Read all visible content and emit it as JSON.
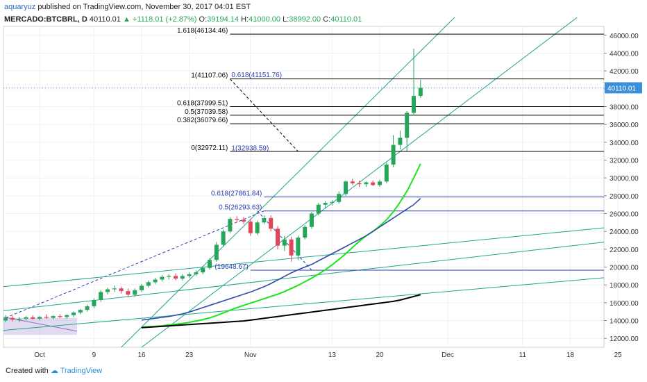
{
  "header": {
    "author": "aquaryuz",
    "published": "published on TradingView.com, November 30, 2017 04:01 EST",
    "symbol": "MERCADO:BTCBRL, D",
    "last": "40110.01",
    "arrow": "▲",
    "change": "+1118.01 (+2.87%)",
    "open_label": "O:",
    "open": "39194.14",
    "high_label": "H:",
    "high": "41000.00",
    "low_label": "L:",
    "low": "38992.00",
    "close_label": "C:",
    "close": "40110.01"
  },
  "footer": {
    "created_with": "Created with",
    "brand": "TradingView"
  },
  "price_tag": "40110.01",
  "colors": {
    "up": "#26a65b",
    "down": "#e0455a",
    "axis_text": "#333333",
    "fib_level": "#000000",
    "fib_blue": "#2a3eb1",
    "channel": "#20a58a",
    "ma_fast": "#19e619",
    "ma_mid": "#2f4aa8",
    "ma_slow": "#000000",
    "price_tag": "#3b8fd9"
  },
  "chart_data": {
    "type": "candlestick",
    "x_axis": {
      "tick_labels": [
        "Oct",
        "9",
        "16",
        "23",
        "Nov",
        "13",
        "20",
        "Dec",
        "11",
        "18",
        "25"
      ]
    },
    "y_axis": {
      "range": [
        11000,
        47000
      ],
      "tick_labels": [
        "12000.00",
        "14000.00",
        "16000.00",
        "18000.00",
        "20000.00",
        "22000.00",
        "24000.00",
        "26000.00",
        "28000.00",
        "30000.00",
        "32000.00",
        "34000.00",
        "36000.00",
        "38000.00",
        "40000.00",
        "42000.00",
        "44000.00",
        "46000.00"
      ]
    },
    "grid": true,
    "candles": [
      {
        "o": 14000,
        "h": 14600,
        "l": 13800,
        "c": 14300
      },
      {
        "o": 14300,
        "h": 14500,
        "l": 13900,
        "c": 14100
      },
      {
        "o": 14100,
        "h": 14400,
        "l": 13800,
        "c": 14200
      },
      {
        "o": 14200,
        "h": 14500,
        "l": 14000,
        "c": 14350
      },
      {
        "o": 14350,
        "h": 14600,
        "l": 14100,
        "c": 14200
      },
      {
        "o": 14200,
        "h": 14500,
        "l": 14000,
        "c": 14400
      },
      {
        "o": 14400,
        "h": 14700,
        "l": 14200,
        "c": 14300
      },
      {
        "o": 14300,
        "h": 14600,
        "l": 14100,
        "c": 14500
      },
      {
        "o": 14500,
        "h": 14700,
        "l": 14300,
        "c": 14400
      },
      {
        "o": 14400,
        "h": 14700,
        "l": 14200,
        "c": 14600
      },
      {
        "o": 14600,
        "h": 15000,
        "l": 14400,
        "c": 14900
      },
      {
        "o": 14900,
        "h": 15300,
        "l": 14700,
        "c": 15200
      },
      {
        "o": 15200,
        "h": 15800,
        "l": 15000,
        "c": 15600
      },
      {
        "o": 15600,
        "h": 16500,
        "l": 15400,
        "c": 16300
      },
      {
        "o": 16300,
        "h": 17400,
        "l": 16100,
        "c": 17200
      },
      {
        "o": 17200,
        "h": 17700,
        "l": 16900,
        "c": 17500
      },
      {
        "o": 17500,
        "h": 17900,
        "l": 17200,
        "c": 17600
      },
      {
        "o": 17600,
        "h": 17800,
        "l": 17000,
        "c": 17300
      },
      {
        "o": 17300,
        "h": 17600,
        "l": 16600,
        "c": 16900
      },
      {
        "o": 16900,
        "h": 17600,
        "l": 16700,
        "c": 17400
      },
      {
        "o": 17400,
        "h": 18100,
        "l": 17200,
        "c": 17900
      },
      {
        "o": 17900,
        "h": 18500,
        "l": 17700,
        "c": 18300
      },
      {
        "o": 18300,
        "h": 18800,
        "l": 18100,
        "c": 18600
      },
      {
        "o": 18600,
        "h": 19100,
        "l": 18400,
        "c": 18900
      },
      {
        "o": 18900,
        "h": 19200,
        "l": 18600,
        "c": 19000
      },
      {
        "o": 19000,
        "h": 19300,
        "l": 18500,
        "c": 18700
      },
      {
        "o": 18700,
        "h": 19200,
        "l": 18500,
        "c": 19000
      },
      {
        "o": 19000,
        "h": 19400,
        "l": 18800,
        "c": 19200
      },
      {
        "o": 19200,
        "h": 19600,
        "l": 19000,
        "c": 19400
      },
      {
        "o": 19400,
        "h": 20100,
        "l": 19200,
        "c": 19900
      },
      {
        "o": 19900,
        "h": 21000,
        "l": 19700,
        "c": 20800
      },
      {
        "o": 20800,
        "h": 22800,
        "l": 20600,
        "c": 22500
      },
      {
        "o": 22500,
        "h": 24200,
        "l": 22300,
        "c": 24000
      },
      {
        "o": 24000,
        "h": 25600,
        "l": 23800,
        "c": 25400
      },
      {
        "o": 25400,
        "h": 25700,
        "l": 25000,
        "c": 25300
      },
      {
        "o": 25300,
        "h": 25600,
        "l": 24800,
        "c": 25100
      },
      {
        "o": 25100,
        "h": 25400,
        "l": 23500,
        "c": 23800
      },
      {
        "o": 23800,
        "h": 25200,
        "l": 23600,
        "c": 25000
      },
      {
        "o": 25000,
        "h": 25800,
        "l": 24800,
        "c": 25500
      },
      {
        "o": 25500,
        "h": 25800,
        "l": 24000,
        "c": 24300
      },
      {
        "o": 24300,
        "h": 24600,
        "l": 22000,
        "c": 22400
      },
      {
        "o": 22400,
        "h": 23500,
        "l": 21800,
        "c": 23100
      },
      {
        "o": 23100,
        "h": 23400,
        "l": 20600,
        "c": 21300
      },
      {
        "o": 21300,
        "h": 23500,
        "l": 20800,
        "c": 23300
      },
      {
        "o": 23300,
        "h": 24700,
        "l": 23100,
        "c": 24500
      },
      {
        "o": 24500,
        "h": 26200,
        "l": 24300,
        "c": 26000
      },
      {
        "o": 26000,
        "h": 27200,
        "l": 25800,
        "c": 27000
      },
      {
        "o": 27000,
        "h": 27400,
        "l": 26600,
        "c": 27200
      },
      {
        "o": 27200,
        "h": 27500,
        "l": 26900,
        "c": 27300
      },
      {
        "o": 27300,
        "h": 28500,
        "l": 27100,
        "c": 28200
      },
      {
        "o": 28200,
        "h": 29700,
        "l": 28000,
        "c": 29600
      },
      {
        "o": 29600,
        "h": 29900,
        "l": 29200,
        "c": 29400
      },
      {
        "o": 29400,
        "h": 29700,
        "l": 29000,
        "c": 29300
      },
      {
        "o": 29300,
        "h": 29600,
        "l": 29000,
        "c": 29500
      },
      {
        "o": 29500,
        "h": 29700,
        "l": 29100,
        "c": 29200
      },
      {
        "o": 29200,
        "h": 29800,
        "l": 29000,
        "c": 29600
      },
      {
        "o": 29600,
        "h": 31700,
        "l": 29400,
        "c": 31500
      },
      {
        "o": 31500,
        "h": 34800,
        "l": 31200,
        "c": 33700
      },
      {
        "o": 33700,
        "h": 35300,
        "l": 33200,
        "c": 34500
      },
      {
        "o": 34500,
        "h": 37500,
        "l": 33000,
        "c": 37300
      },
      {
        "o": 37300,
        "h": 44500,
        "l": 37000,
        "c": 39200
      },
      {
        "o": 39200,
        "h": 41000,
        "l": 38992,
        "c": 40110
      }
    ],
    "moving_averages": [
      {
        "values": [
          13250,
          13300,
          13350,
          13420,
          13500,
          13580,
          13680,
          13800,
          13950,
          14100,
          14300,
          14550,
          14850,
          15150,
          15450,
          15700,
          15950,
          16200,
          16450,
          16700,
          16950,
          17250,
          17600,
          17950,
          18350,
          18750,
          19200,
          19700,
          20250,
          20850,
          21500,
          22200,
          22900,
          23500,
          24000,
          24600,
          25300,
          26200,
          27300,
          28500,
          30000,
          31600
        ]
      },
      {
        "values": [
          14050,
          14150,
          14250,
          14350,
          14450,
          14600,
          14750,
          14950,
          15200,
          15450,
          15700,
          15950,
          16200,
          16450,
          16700,
          16950,
          17200,
          17500,
          17800,
          18150,
          18550,
          18950,
          19350,
          19700,
          20000,
          20300,
          20700,
          21100,
          21500,
          21900,
          22300,
          22700,
          23100,
          23500,
          24000,
          24500,
          25000,
          25500,
          26000,
          26500,
          27000,
          27700
        ]
      },
      {
        "values": [
          13200,
          13250,
          13300,
          13350,
          13400,
          13450,
          13500,
          13550,
          13600,
          13650,
          13700,
          13750,
          13800,
          13850,
          13900,
          13950,
          14050,
          14150,
          14250,
          14350,
          14450,
          14550,
          14650,
          14750,
          14850,
          14950,
          15050,
          15150,
          15250,
          15350,
          15450,
          15550,
          15650,
          15750,
          15850,
          15950,
          16050,
          16150,
          16300,
          16500,
          16700,
          16900
        ]
      }
    ],
    "fib_levels": [
      {
        "label": "1.618(46134.46)",
        "value": 46134.46
      },
      {
        "label": "1(41107.06)",
        "value": 41107.06
      },
      {
        "label": "0.618(37999.51)",
        "value": 37999.51
      },
      {
        "label": "0.5(37039.58)",
        "value": 37039.58
      },
      {
        "label": "0.382(36079.66)",
        "value": 36079.66
      },
      {
        "label": "0(32972.11)",
        "value": 32972.11
      }
    ],
    "fib_blue_levels": [
      {
        "label": "0.618(41151.76)",
        "value": 41151.76
      },
      {
        "label": "1(32938.59)",
        "value": 32938.59
      },
      {
        "label": "0.618(27861.84)",
        "value": 27861.84
      },
      {
        "label": "0.5(26293.63)",
        "value": 26293.63
      },
      {
        "label": "(19648.67)",
        "value": 19648.67
      }
    ]
  }
}
